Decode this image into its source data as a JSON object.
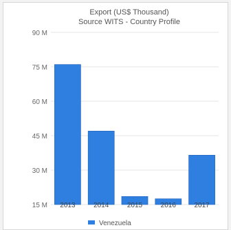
{
  "chart_data": {
    "type": "bar",
    "title": "Export (US$ Thousand)",
    "subtitle": "Source WITS - Country Profile",
    "xlabel": "",
    "ylabel": "",
    "categories": [
      "2013",
      "2014",
      "2015",
      "2016",
      "2017"
    ],
    "series": [
      {
        "name": "Venezuela",
        "values": [
          76,
          47,
          18.5,
          17.5,
          36.5
        ]
      }
    ],
    "ylim": [
      15,
      90
    ],
    "yticks": [
      15,
      30,
      45,
      60,
      75,
      90
    ],
    "ytick_labels": [
      "15 M",
      "30 M",
      "45 M",
      "60 M",
      "75 M",
      "90 M"
    ],
    "grid": true,
    "legend": "bottom-center",
    "colors": {
      "bar": "#2f7fe0",
      "bar_edge": "#1a5fb8",
      "grid": "#e6e6e6"
    }
  }
}
